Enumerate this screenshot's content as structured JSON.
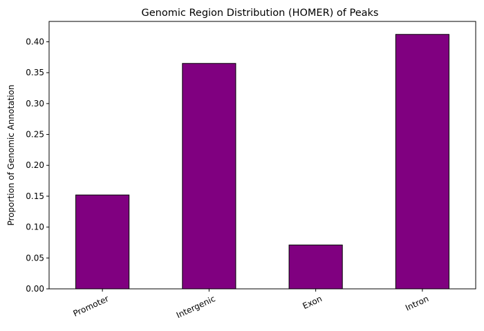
{
  "chart_data": {
    "type": "bar",
    "title": "Genomic Region Distribution (HOMER) of Peaks",
    "xlabel": "",
    "ylabel": "Proportion of Genomic Annotation",
    "categories": [
      "Promoter",
      "Intergenic",
      "Exon",
      "Intron"
    ],
    "values": [
      0.152,
      0.365,
      0.071,
      0.412
    ],
    "ylim": [
      0,
      0.433
    ],
    "yticks": [
      0.0,
      0.05,
      0.1,
      0.15,
      0.2,
      0.25,
      0.3,
      0.35,
      0.4
    ],
    "ytick_labels": [
      "0.00",
      "0.05",
      "0.10",
      "0.15",
      "0.20",
      "0.25",
      "0.30",
      "0.35",
      "0.40"
    ],
    "grid": false,
    "bar_color": "#800080",
    "edge_color": "#000000",
    "xtick_rotation": 25
  }
}
